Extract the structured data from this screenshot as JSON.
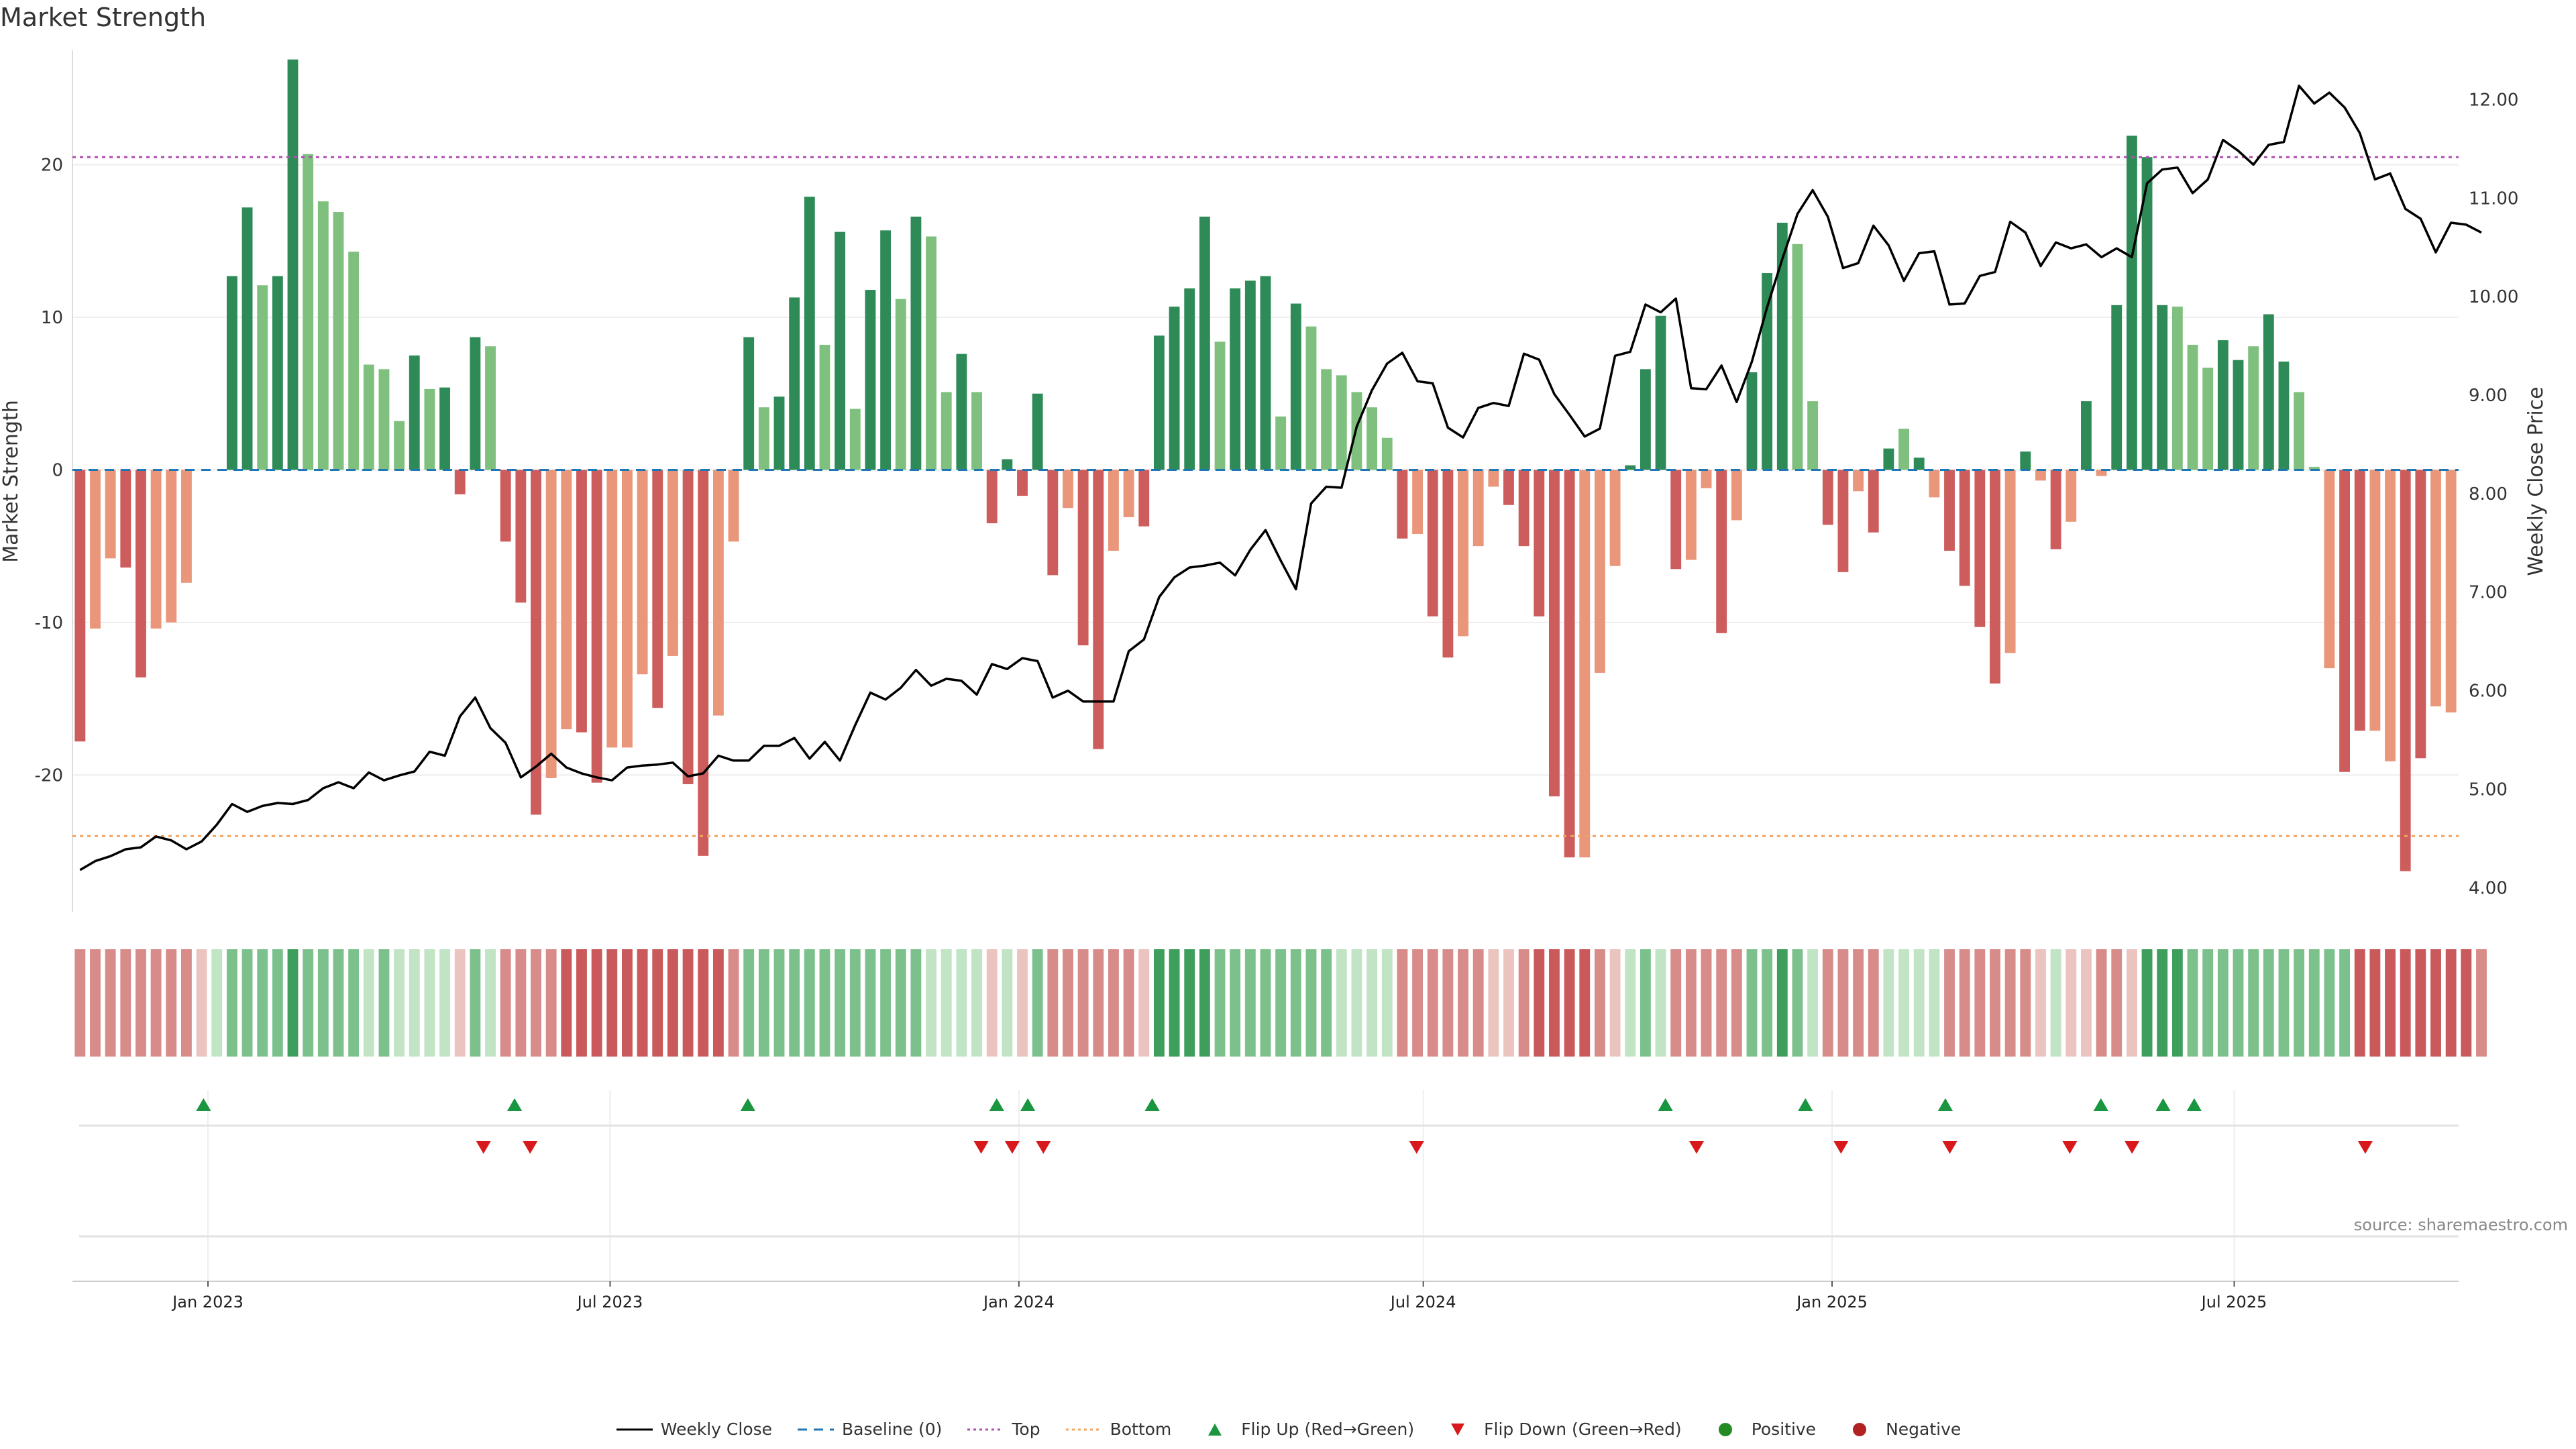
{
  "page": {
    "title": "Market Strength",
    "source": "source: sharemaestro.com"
  },
  "colors": {
    "dark_green": "#2e8b57",
    "light_green": "#7fc07f",
    "dark_red": "#cd5c5c",
    "light_red": "#e9967a",
    "price_line": "#000000",
    "top_line": "#b04fb0",
    "bottom_line": "#f4a460",
    "baseline": "#1f77b4",
    "flip_up": "#1a9641",
    "flip_down": "#d7191c",
    "positive": "#228b22",
    "negative": "#b22222"
  },
  "legend": [
    {
      "key": "weekly_close",
      "label": "Weekly Close",
      "icon": "solid-line"
    },
    {
      "key": "baseline",
      "label": "Baseline (0)",
      "icon": "dash-line"
    },
    {
      "key": "top",
      "label": "Top",
      "icon": "dotted-line"
    },
    {
      "key": "bottom",
      "label": "Bottom",
      "icon": "dotted-line"
    },
    {
      "key": "flip_up",
      "label": "Flip Up (Red→Green)",
      "icon": "triangle-up"
    },
    {
      "key": "flip_down",
      "label": "Flip Down (Green→Red)",
      "icon": "triangle-down"
    },
    {
      "key": "positive",
      "label": "Positive",
      "icon": "circle"
    },
    {
      "key": "negative",
      "label": "Negative",
      "icon": "circle"
    }
  ],
  "chart_data": {
    "type": "bar",
    "title": "Market Strength",
    "ylabel": "Market Strength",
    "y2label": "Weekly Close Price",
    "ylim": [
      -29,
      27.5
    ],
    "y2lim": [
      3.75,
      12.5
    ],
    "yticks": [
      -20,
      -10,
      0,
      10,
      20
    ],
    "y2ticks": [
      4.0,
      5.0,
      6.0,
      7.0,
      8.0,
      9.0,
      10.0,
      11.0,
      12.0
    ],
    "x_start": "2022-11-01",
    "x_end": "2025-10-10",
    "x_ticks": [
      "Jan 2023",
      "Jul 2023",
      "Jan 2024",
      "Jul 2024",
      "Jan 2025",
      "Jul 2025"
    ],
    "x_tick_dates": [
      "2023-01-01",
      "2023-07-01",
      "2024-01-01",
      "2024-07-01",
      "2025-01-01",
      "2025-07-01"
    ],
    "top_level": 20.5,
    "bottom_level": -24,
    "strength": [
      -17.8,
      -10.4,
      -5.8,
      -6.4,
      -13.6,
      -10.4,
      -10.0,
      -7.4,
      0,
      0,
      12.7,
      17.2,
      12.1,
      12.7,
      26.9,
      20.7,
      17.6,
      16.9,
      14.3,
      6.9,
      6.6,
      3.2,
      7.5,
      5.3,
      5.4,
      -1.6,
      8.7,
      8.1,
      -4.7,
      -8.7,
      -22.6,
      -20.2,
      -17.0,
      -17.2,
      -20.5,
      -18.2,
      -18.2,
      -13.4,
      -15.6,
      -12.2,
      -20.6,
      -25.3,
      -16.1,
      -4.7,
      8.7,
      4.1,
      4.8,
      11.3,
      17.9,
      8.2,
      15.6,
      4.0,
      11.8,
      15.7,
      11.2,
      16.6,
      15.3,
      5.1,
      7.6,
      5.1,
      -3.5,
      0.7,
      -1.7,
      5.0,
      -6.9,
      -2.5,
      -11.5,
      -18.3,
      -5.3,
      -3.1,
      -3.7,
      8.8,
      10.7,
      11.9,
      16.6,
      8.4,
      11.9,
      12.4,
      12.7,
      3.5,
      10.9,
      9.4,
      6.6,
      6.2,
      5.1,
      4.1,
      2.1,
      -4.5,
      -4.2,
      -9.6,
      -12.3,
      -10.9,
      -5.0,
      -1.1,
      -2.3,
      -5.0,
      -9.6,
      -21.4,
      -25.4,
      -25.4,
      -13.3,
      -6.3,
      0.3,
      6.6,
      10.1,
      -6.5,
      -5.9,
      -1.2,
      -10.7,
      -3.3,
      6.4,
      12.9,
      16.2,
      14.8,
      4.5,
      -3.6,
      -6.7,
      -1.4,
      -4.1,
      1.4,
      2.7,
      0.8,
      -1.8,
      -5.3,
      -7.6,
      -10.3,
      -14.0,
      -12.0,
      1.2,
      -0.7,
      -5.2,
      -3.4,
      4.5,
      -0.4,
      10.8,
      21.9,
      20.5,
      10.8,
      10.7,
      8.2,
      6.7,
      8.5,
      7.2,
      8.1,
      10.2,
      7.1,
      5.1,
      0.2,
      -13.0,
      -19.8,
      -17.1,
      -17.1,
      -19.1,
      -26.3,
      -18.9,
      -15.5,
      -15.9
    ],
    "strength_shades": [
      "dark",
      "light",
      "light",
      "dark",
      "dark",
      "light",
      "light",
      "light",
      "dark",
      "dark",
      "dark",
      "dark",
      "light",
      "dark",
      "dark",
      "light",
      "light",
      "light",
      "light",
      "light",
      "light",
      "light",
      "dark",
      "light",
      "dark",
      "dark",
      "dark",
      "light",
      "dark",
      "dark",
      "dark",
      "light",
      "light",
      "dark",
      "dark",
      "light",
      "light",
      "light",
      "dark",
      "light",
      "dark",
      "dark",
      "light",
      "light",
      "dark",
      "light",
      "dark",
      "dark",
      "dark",
      "light",
      "dark",
      "light",
      "dark",
      "dark",
      "light",
      "dark",
      "light",
      "light",
      "dark",
      "light",
      "dark",
      "dark",
      "dark",
      "dark",
      "dark",
      "light",
      "dark",
      "dark",
      "light",
      "light",
      "dark",
      "dark",
      "dark",
      "dark",
      "dark",
      "light",
      "dark",
      "dark",
      "dark",
      "light",
      "dark",
      "light",
      "light",
      "light",
      "light",
      "light",
      "light",
      "dark",
      "light",
      "dark",
      "dark",
      "light",
      "light",
      "light",
      "dark",
      "dark",
      "dark",
      "dark",
      "dark",
      "light",
      "light",
      "light",
      "dark",
      "dark",
      "dark",
      "dark",
      "light",
      "light",
      "dark",
      "light",
      "dark",
      "dark",
      "dark",
      "light",
      "light",
      "dark",
      "dark",
      "light",
      "dark",
      "dark",
      "light",
      "dark",
      "light",
      "dark",
      "dark",
      "dark",
      "dark",
      "light",
      "dark",
      "light",
      "dark",
      "light",
      "dark",
      "light",
      "dark",
      "dark",
      "dark",
      "dark",
      "light",
      "light",
      "light",
      "dark",
      "dark",
      "light",
      "dark",
      "dark",
      "light",
      "light",
      "light",
      "dark",
      "dark",
      "light",
      "light",
      "dark",
      "dark",
      "light",
      "light",
      "dark"
    ],
    "weekly_close": [
      4.18,
      4.27,
      4.32,
      4.39,
      4.41,
      4.52,
      4.48,
      4.39,
      4.47,
      4.64,
      4.85,
      4.77,
      4.83,
      4.86,
      4.85,
      4.89,
      5.01,
      5.07,
      5.01,
      5.17,
      5.09,
      5.14,
      5.18,
      5.38,
      5.34,
      5.74,
      5.93,
      5.62,
      5.47,
      5.12,
      5.23,
      5.36,
      5.22,
      5.16,
      5.12,
      5.09,
      5.22,
      5.24,
      5.25,
      5.27,
      5.13,
      5.16,
      5.34,
      5.29,
      5.29,
      5.44,
      5.44,
      5.52,
      5.31,
      5.48,
      5.29,
      5.65,
      5.98,
      5.91,
      6.03,
      6.21,
      6.05,
      6.12,
      6.1,
      5.96,
      6.27,
      6.22,
      6.33,
      6.3,
      5.93,
      6.0,
      5.89,
      5.89,
      5.89,
      6.4,
      6.52,
      6.95,
      7.15,
      7.25,
      7.27,
      7.3,
      7.17,
      7.43,
      7.63,
      7.32,
      7.03,
      7.9,
      8.07,
      8.06,
      8.68,
      9.05,
      9.32,
      9.43,
      9.14,
      9.12,
      8.67,
      8.57,
      8.87,
      8.92,
      8.89,
      9.42,
      9.36,
      9.01,
      8.8,
      8.58,
      8.66,
      9.4,
      9.44,
      9.92,
      9.84,
      9.98,
      9.07,
      9.06,
      9.3,
      8.93,
      9.34,
      9.89,
      10.38,
      10.84,
      11.08,
      10.81,
      10.29,
      10.34,
      10.72,
      10.52,
      10.16,
      10.44,
      10.46,
      9.92,
      9.93,
      10.21,
      10.25,
      10.76,
      10.65,
      10.31,
      10.55,
      10.49,
      10.53,
      10.4,
      10.49,
      10.4,
      11.15,
      11.29,
      11.31,
      11.05,
      11.19,
      11.59,
      11.48,
      11.34,
      11.54,
      11.57,
      12.14,
      11.96,
      12.07,
      11.92,
      11.66,
      11.19,
      11.25,
      10.89,
      10.79,
      10.45,
      10.75,
      10.73,
      10.65
    ],
    "heat_strip": [
      -2,
      -2,
      -2,
      -2,
      -2,
      -2,
      -2,
      -2,
      -1,
      1,
      2,
      2,
      2,
      2,
      3,
      2,
      2,
      2,
      2,
      1,
      2,
      1,
      1,
      1,
      1,
      -1,
      2,
      1,
      -2,
      -2,
      -2,
      -2,
      -3,
      -3,
      -3,
      -3,
      -3,
      -3,
      -3,
      -3,
      -3,
      -3,
      -3,
      -2,
      2,
      2,
      2,
      2,
      2,
      2,
      2,
      2,
      2,
      2,
      2,
      2,
      1,
      1,
      1,
      1,
      -1,
      1,
      -1,
      2,
      -2,
      -2,
      -2,
      -2,
      -2,
      -2,
      -1,
      3,
      3,
      3,
      3,
      2,
      2,
      2,
      2,
      2,
      2,
      2,
      2,
      1,
      1,
      1,
      1,
      -2,
      -2,
      -2,
      -2,
      -2,
      -2,
      -1,
      -1,
      -2,
      -3,
      -3,
      -3,
      -3,
      -2,
      -1,
      1,
      2,
      1,
      -2,
      -2,
      -2,
      -2,
      -2,
      2,
      2,
      3,
      2,
      1,
      -2,
      -2,
      -2,
      -2,
      1,
      1,
      1,
      1,
      -2,
      -2,
      -2,
      -2,
      -2,
      -2,
      -1,
      1,
      -1,
      -1,
      -2,
      -2,
      -1,
      3,
      3,
      3,
      2,
      2,
      2,
      2,
      2,
      2,
      2,
      2,
      2,
      2,
      2,
      -3,
      -3,
      -3,
      -3,
      -3,
      -3,
      -3,
      -3,
      -2
    ],
    "flip_up": [
      "2022-12-30",
      "2023-05-19",
      "2023-09-01",
      "2023-12-22",
      "2024-01-05",
      "2024-03-01",
      "2024-10-18",
      "2024-12-20",
      "2025-02-21",
      "2025-05-02",
      "2025-05-30",
      "2025-06-13"
    ],
    "flip_down": [
      "2023-05-05",
      "2023-05-26",
      "2023-12-15",
      "2023-12-29",
      "2024-01-12",
      "2024-06-28",
      "2024-11-01",
      "2025-01-05",
      "2025-02-23",
      "2025-04-18",
      "2025-05-16",
      "2025-08-29"
    ]
  }
}
